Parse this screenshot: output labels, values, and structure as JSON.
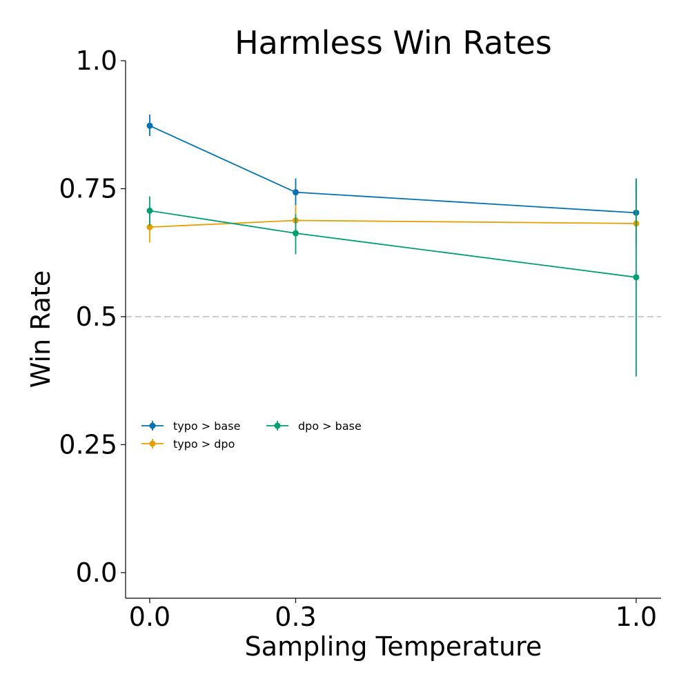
{
  "chart_data": {
    "type": "line",
    "title": "Harmless Win Rates",
    "xlabel": "Sampling Temperature",
    "ylabel": "Win Rate",
    "x": [
      0.0,
      0.3,
      1.0
    ],
    "x_tick_labels": [
      "0.0",
      "0.3",
      "1.0"
    ],
    "y_ticks": [
      0.0,
      0.25,
      0.5,
      0.75,
      1.0
    ],
    "y_tick_labels": [
      "0.0",
      "0.25",
      "0.5",
      "0.75",
      "1.0"
    ],
    "ylim": [
      -0.05,
      1.0
    ],
    "reference_line": {
      "y": 0.5,
      "style": "dashed",
      "color": "#cccccc"
    },
    "grid": false,
    "legend_placement": "center-left",
    "series": [
      {
        "name": "typo > base",
        "color": "#0072B2",
        "values": [
          0.873,
          0.743,
          0.703
        ],
        "error_low": [
          0.853,
          0.718,
          0.64
        ],
        "error_high": [
          0.895,
          0.77,
          0.77
        ]
      },
      {
        "name": "typo > dpo",
        "color": "#E69F00",
        "values": [
          0.675,
          0.688,
          0.682
        ],
        "error_low": [
          0.645,
          0.66,
          0.64
        ],
        "error_high": [
          0.705,
          0.718,
          0.725
        ]
      },
      {
        "name": "dpo > base",
        "color": "#009E73",
        "values": [
          0.707,
          0.663,
          0.577
        ],
        "error_low": [
          0.678,
          0.622,
          0.383
        ],
        "error_high": [
          0.735,
          0.7,
          0.77
        ]
      }
    ]
  }
}
